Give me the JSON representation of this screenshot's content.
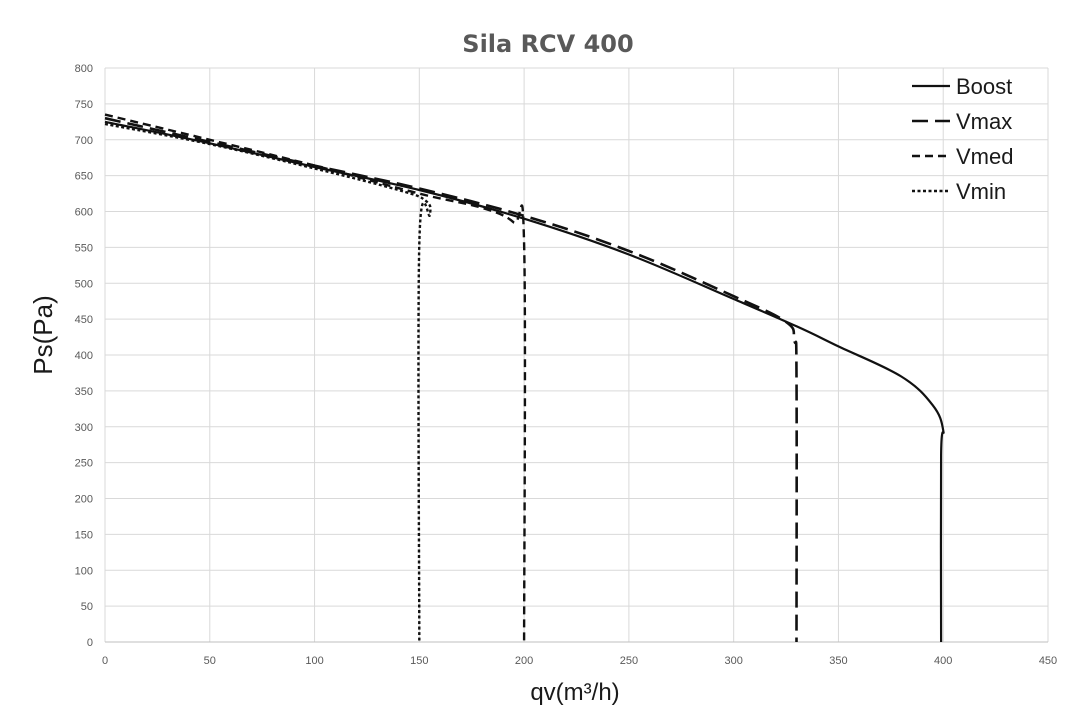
{
  "chart_data": {
    "type": "line",
    "title": "Sila RCV 400",
    "xlabel": "qv(m³/h)",
    "ylabel": "Ps(Pa)",
    "xlim": [
      0,
      450
    ],
    "ylim": [
      0,
      800
    ],
    "x_ticks": [
      0,
      50,
      100,
      150,
      200,
      250,
      300,
      350,
      400,
      450
    ],
    "y_ticks": [
      0,
      50,
      100,
      150,
      200,
      250,
      300,
      350,
      400,
      450,
      500,
      550,
      600,
      650,
      700,
      750,
      800
    ],
    "grid": true,
    "legend_position": "top-right",
    "series": [
      {
        "name": "Boost",
        "style": "solid",
        "points": [
          [
            0,
            725
          ],
          [
            50,
            695
          ],
          [
            100,
            662
          ],
          [
            150,
            630
          ],
          [
            200,
            590
          ],
          [
            250,
            540
          ],
          [
            300,
            478
          ],
          [
            330,
            440
          ],
          [
            350,
            412
          ],
          [
            380,
            370
          ],
          [
            395,
            330
          ],
          [
            400,
            295
          ],
          [
            399,
            260
          ],
          [
            399,
            0
          ]
        ]
      },
      {
        "name": "Vmax",
        "style": "long-dash",
        "points": [
          [
            0,
            730
          ],
          [
            50,
            697
          ],
          [
            100,
            664
          ],
          [
            150,
            632
          ],
          [
            200,
            594
          ],
          [
            250,
            545
          ],
          [
            300,
            482
          ],
          [
            325,
            446
          ],
          [
            329,
            420
          ],
          [
            330,
            370
          ],
          [
            330,
            0
          ]
        ]
      },
      {
        "name": "Vmed",
        "style": "dash",
        "points": [
          [
            0,
            735
          ],
          [
            50,
            700
          ],
          [
            100,
            664
          ],
          [
            150,
            625
          ],
          [
            180,
            605
          ],
          [
            195,
            585
          ],
          [
            200,
            555
          ],
          [
            200,
            0
          ]
        ]
      },
      {
        "name": "Vmin",
        "style": "dot",
        "points": [
          [
            0,
            722
          ],
          [
            50,
            694
          ],
          [
            100,
            660
          ],
          [
            140,
            630
          ],
          [
            153,
            615
          ],
          [
            155,
            595
          ],
          [
            150,
            555
          ],
          [
            150,
            0
          ]
        ]
      }
    ]
  }
}
